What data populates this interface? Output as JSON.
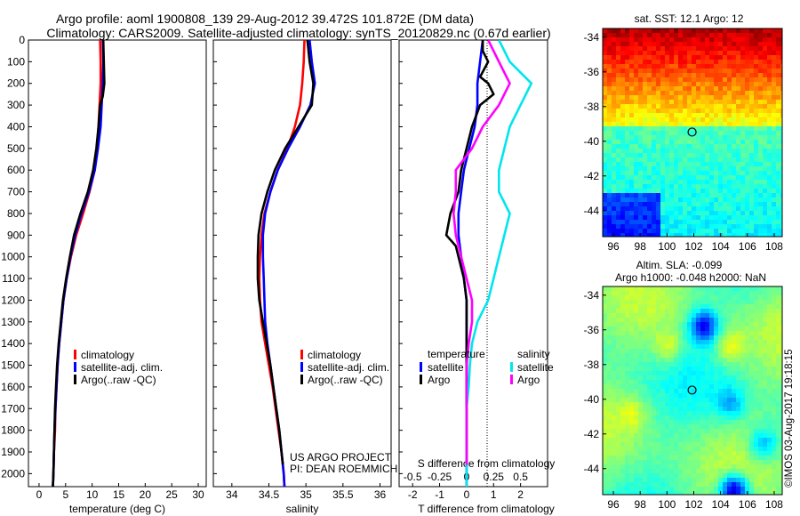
{
  "title_line1": "Argo profile: aoml 1900808_139 29-Aug-2012 39.472S 101.872E (DM data)",
  "title_line2": "Climatology: CARS2009. Satellite-adjusted climatology: synTS_20120829.nc (0.67d earlier)",
  "sst_title": "sat. SST: 12.1 Argo: 12",
  "sla_title1": "Altim. SLA: -0.099",
  "sla_title2": "Argo h1000: -0.048 h2000: NaN",
  "credit": "©IMOS 03-Aug-2017 19:18:15",
  "project_line1": "US ARGO PROJECT",
  "project_line2": "PI: DEAN ROEMMICH",
  "colors": {
    "climatology": "#ff0000",
    "satellite": "#0000ff",
    "argo": "#000000",
    "sat_salinity": "#00e5ee",
    "argo_salinity": "#ff00ff"
  },
  "legend": {
    "climatology": "climatology",
    "satellite": "satellite-adj. clim.",
    "argo": "Argo(..raw -QC)"
  },
  "diff_legend": {
    "temperature": "temperature",
    "salinity": "salinity",
    "satellite": "satellite",
    "argo": "Argo"
  },
  "chart_data": [
    {
      "type": "line",
      "xlabel": "temperature (deg C)",
      "ylabel": "",
      "xlim": [
        -2,
        31.5
      ],
      "ylim": [
        2060,
        0
      ],
      "xticks": [
        0,
        5,
        10,
        15,
        20,
        25,
        30
      ],
      "yticks": [
        0,
        100,
        200,
        300,
        400,
        500,
        600,
        700,
        800,
        900,
        1000,
        1100,
        1200,
        1300,
        1400,
        1500,
        1600,
        1700,
        1800,
        1900,
        2000
      ],
      "series": [
        {
          "name": "climatology",
          "color": "#ff0000",
          "points": [
            [
              11.5,
              0
            ],
            [
              11.6,
              100
            ],
            [
              11.6,
              200
            ],
            [
              11.4,
              300
            ],
            [
              11.2,
              400
            ],
            [
              11.0,
              500
            ],
            [
              10.5,
              600
            ],
            [
              9.5,
              700
            ],
            [
              8.3,
              800
            ],
            [
              7.0,
              900
            ],
            [
              6.0,
              1000
            ],
            [
              5.2,
              1100
            ],
            [
              4.6,
              1200
            ],
            [
              4.2,
              1300
            ],
            [
              3.8,
              1400
            ],
            [
              3.5,
              1500
            ],
            [
              3.3,
              1600
            ],
            [
              3.1,
              1700
            ],
            [
              3.0,
              1800
            ],
            [
              2.8,
              1900
            ],
            [
              2.7,
              2000
            ],
            [
              2.6,
              2060
            ]
          ]
        },
        {
          "name": "satellite-adj. clim.",
          "color": "#0000ff",
          "points": [
            [
              12.0,
              0
            ],
            [
              12.1,
              100
            ],
            [
              12.0,
              200
            ],
            [
              11.8,
              300
            ],
            [
              11.6,
              400
            ],
            [
              11.1,
              500
            ],
            [
              10.5,
              600
            ],
            [
              9.4,
              700
            ],
            [
              8.0,
              800
            ],
            [
              6.8,
              900
            ],
            [
              5.9,
              1000
            ],
            [
              5.2,
              1100
            ],
            [
              4.6,
              1200
            ],
            [
              4.2,
              1300
            ],
            [
              3.8,
              1400
            ],
            [
              3.5,
              1500
            ],
            [
              3.3,
              1600
            ],
            [
              3.1,
              1700
            ],
            [
              2.9,
              1800
            ],
            [
              2.8,
              1900
            ],
            [
              2.7,
              2000
            ],
            [
              2.6,
              2060
            ]
          ]
        },
        {
          "name": "Argo(..raw -QC)",
          "color": "#000000",
          "points": [
            [
              12.1,
              0
            ],
            [
              12.2,
              100
            ],
            [
              12.3,
              200
            ],
            [
              12.0,
              260
            ],
            [
              11.5,
              300
            ],
            [
              11.2,
              400
            ],
            [
              10.8,
              500
            ],
            [
              10.2,
              600
            ],
            [
              9.2,
              700
            ],
            [
              7.8,
              800
            ],
            [
              6.6,
              900
            ],
            [
              5.8,
              1000
            ],
            [
              5.1,
              1100
            ],
            [
              4.5,
              1200
            ],
            [
              4.1,
              1300
            ],
            [
              3.7,
              1400
            ],
            [
              3.4,
              1500
            ],
            [
              3.2,
              1600
            ],
            [
              3.0,
              1700
            ],
            [
              2.9,
              1800
            ],
            [
              2.8,
              1900
            ],
            [
              2.7,
              2000
            ],
            [
              2.6,
              2060
            ]
          ]
        }
      ]
    },
    {
      "type": "line",
      "xlabel": "salinity",
      "ylabel": "",
      "xlim": [
        33.75,
        36.15
      ],
      "ylim": [
        2060,
        0
      ],
      "xticks": [
        34,
        34.5,
        35,
        35.5,
        36
      ],
      "series": [
        {
          "name": "climatology",
          "color": "#ff0000",
          "points": [
            [
              34.98,
              0
            ],
            [
              34.97,
              100
            ],
            [
              34.95,
              200
            ],
            [
              34.92,
              300
            ],
            [
              34.85,
              400
            ],
            [
              34.75,
              500
            ],
            [
              34.62,
              600
            ],
            [
              34.52,
              700
            ],
            [
              34.44,
              800
            ],
            [
              34.4,
              900
            ],
            [
              34.38,
              1000
            ],
            [
              34.37,
              1100
            ],
            [
              34.38,
              1200
            ],
            [
              34.4,
              1300
            ],
            [
              34.45,
              1400
            ],
            [
              34.5,
              1500
            ],
            [
              34.55,
              1600
            ],
            [
              34.59,
              1700
            ],
            [
              34.63,
              1800
            ],
            [
              34.67,
              1900
            ],
            [
              34.7,
              2000
            ],
            [
              34.71,
              2060
            ]
          ]
        },
        {
          "name": "satellite-adj. clim.",
          "color": "#0000ff",
          "points": [
            [
              35.05,
              0
            ],
            [
              35.08,
              100
            ],
            [
              35.12,
              200
            ],
            [
              35.06,
              300
            ],
            [
              34.92,
              400
            ],
            [
              34.76,
              500
            ],
            [
              34.62,
              600
            ],
            [
              34.52,
              700
            ],
            [
              34.45,
              800
            ],
            [
              34.42,
              900
            ],
            [
              34.42,
              1000
            ],
            [
              34.43,
              1100
            ],
            [
              34.44,
              1200
            ],
            [
              34.45,
              1300
            ],
            [
              34.48,
              1400
            ],
            [
              34.52,
              1500
            ],
            [
              34.56,
              1600
            ],
            [
              34.6,
              1700
            ],
            [
              34.64,
              1800
            ],
            [
              34.67,
              1900
            ],
            [
              34.7,
              2000
            ],
            [
              34.71,
              2060
            ]
          ]
        },
        {
          "name": "Argo(..raw -QC)",
          "color": "#000000",
          "points": [
            [
              35.02,
              0
            ],
            [
              35.05,
              100
            ],
            [
              35.1,
              200
            ],
            [
              35.08,
              300
            ],
            [
              34.9,
              400
            ],
            [
              34.72,
              500
            ],
            [
              34.58,
              600
            ],
            [
              34.48,
              700
            ],
            [
              34.4,
              800
            ],
            [
              34.36,
              900
            ],
            [
              34.35,
              1000
            ],
            [
              34.35,
              1100
            ],
            [
              34.37,
              1200
            ],
            [
              34.42,
              1300
            ],
            [
              34.47,
              1400
            ],
            [
              34.52,
              1500
            ],
            [
              34.56,
              1600
            ],
            [
              34.6,
              1700
            ],
            [
              34.64,
              1800
            ],
            [
              34.67,
              1900
            ],
            [
              34.69,
              1960
            ]
          ]
        }
      ]
    },
    {
      "type": "line",
      "xlabel": "T difference from climatology",
      "x2label": "S difference from climatology",
      "xlim": [
        -2.5,
        3.0
      ],
      "ylim": [
        2060,
        0
      ],
      "xticks": [
        -2,
        -1,
        0,
        1,
        2
      ],
      "x2ticks": [
        -0.5,
        -0.25,
        0,
        0.25,
        0.5
      ],
      "series": [
        {
          "name": "temperature satellite",
          "color": "#0000ff",
          "points": [
            [
              0.6,
              0
            ],
            [
              0.5,
              100
            ],
            [
              0.4,
              200
            ],
            [
              0.4,
              300
            ],
            [
              0.3,
              400
            ],
            [
              0.1,
              500
            ],
            [
              -0.1,
              600
            ],
            [
              -0.2,
              700
            ],
            [
              -0.3,
              800
            ],
            [
              -0.3,
              900
            ],
            [
              -0.2,
              1000
            ],
            [
              -0.1,
              1100
            ],
            [
              0.0,
              1200
            ],
            [
              0.0,
              1300
            ],
            [
              0.0,
              1400
            ],
            [
              0.0,
              1500
            ],
            [
              0.0,
              1600
            ],
            [
              0.0,
              1700
            ],
            [
              0.0,
              1800
            ],
            [
              0.0,
              1900
            ],
            [
              0.0,
              2000
            ],
            [
              0.0,
              2060
            ]
          ]
        },
        {
          "name": "temperature Argo",
          "color": "#000000",
          "points": [
            [
              0.6,
              0
            ],
            [
              0.6,
              50
            ],
            [
              0.8,
              100
            ],
            [
              0.5,
              170
            ],
            [
              0.8,
              200
            ],
            [
              1.0,
              250
            ],
            [
              0.5,
              300
            ],
            [
              0.2,
              400
            ],
            [
              0.0,
              500
            ],
            [
              -0.2,
              600
            ],
            [
              -0.3,
              700
            ],
            [
              -0.6,
              800
            ],
            [
              -0.75,
              900
            ],
            [
              -0.4,
              950
            ],
            [
              -0.3,
              1000
            ],
            [
              -0.1,
              1100
            ],
            [
              0.0,
              1200
            ],
            [
              0.0,
              1300
            ],
            [
              0.0,
              1400
            ],
            [
              0.0,
              1500
            ],
            [
              0.0,
              1600
            ],
            [
              0.0,
              1700
            ],
            [
              0.0,
              1800
            ],
            [
              0.0,
              1900
            ],
            [
              0.0,
              1960
            ]
          ]
        },
        {
          "name": "salinity satellite",
          "color": "#00e5ee",
          "points": [
            [
              0.3,
              0
            ],
            [
              0.4,
              100
            ],
            [
              0.6,
              200
            ],
            [
              0.5,
              300
            ],
            [
              0.4,
              400
            ],
            [
              0.35,
              500
            ],
            [
              0.3,
              600
            ],
            [
              0.3,
              700
            ],
            [
              0.4,
              800
            ],
            [
              0.35,
              900
            ],
            [
              0.3,
              1000
            ],
            [
              0.25,
              1100
            ],
            [
              0.2,
              1200
            ],
            [
              0.1,
              1300
            ],
            [
              0.05,
              1400
            ],
            [
              0.03,
              1500
            ],
            [
              0.02,
              1600
            ],
            [
              0.0,
              1700
            ],
            [
              0.0,
              1800
            ],
            [
              0.0,
              1900
            ],
            [
              0.0,
              2000
            ],
            [
              0.0,
              2060
            ]
          ]
        },
        {
          "name": "salinity Argo",
          "color": "#ff00ff",
          "points": [
            [
              0.2,
              0
            ],
            [
              0.3,
              100
            ],
            [
              0.4,
              200
            ],
            [
              0.3,
              300
            ],
            [
              0.15,
              400
            ],
            [
              0.05,
              500
            ],
            [
              -0.1,
              600
            ],
            [
              -0.1,
              700
            ],
            [
              -0.12,
              800
            ],
            [
              -0.1,
              900
            ],
            [
              -0.05,
              1000
            ],
            [
              0.0,
              1100
            ],
            [
              0.05,
              1200
            ],
            [
              0.05,
              1300
            ],
            [
              0.02,
              1400
            ],
            [
              0.0,
              1500
            ],
            [
              0.0,
              1600
            ],
            [
              0.0,
              1700
            ],
            [
              0.0,
              1800
            ],
            [
              0.0,
              1900
            ],
            [
              0.0,
              1960
            ]
          ]
        }
      ]
    },
    {
      "type": "heatmap",
      "title": "sat. SST: 12.1 Argo: 12",
      "xlim": [
        95.2,
        108.6
      ],
      "ylim": [
        -45.5,
        -33.5
      ],
      "xticks": [
        96,
        98,
        100,
        102,
        104,
        106,
        108
      ],
      "yticks": [
        -34,
        -36,
        -38,
        -40,
        -42,
        -44
      ],
      "float_position": [
        101.872,
        -39.472
      ]
    },
    {
      "type": "heatmap",
      "title": "Altim. SLA: -0.099",
      "xlim": [
        95.2,
        108.6
      ],
      "ylim": [
        -45.5,
        -33.5
      ],
      "xticks": [
        96,
        98,
        100,
        102,
        104,
        106,
        108
      ],
      "yticks": [
        -34,
        -36,
        -38,
        -40,
        -42,
        -44
      ],
      "float_position": [
        101.872,
        -39.472
      ]
    }
  ]
}
